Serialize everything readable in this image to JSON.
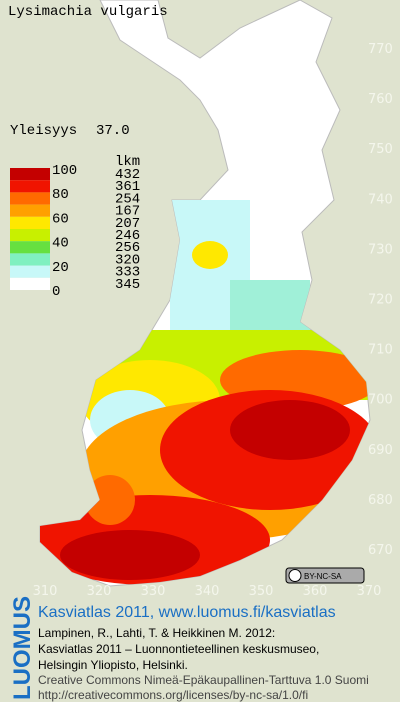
{
  "title": "Lysimachia vulgaris",
  "frequency": {
    "label": "Yleisyys",
    "value": "37.0"
  },
  "legend": {
    "count_header": "lkm",
    "scale_labels": [
      100,
      80,
      60,
      40,
      20,
      0
    ],
    "counts": [
      432,
      361,
      254,
      167,
      207,
      246,
      256,
      320,
      333,
      345
    ],
    "colors": [
      "#c40000",
      "#f01400",
      "#ff6a00",
      "#ffa000",
      "#ffe800",
      "#c8f000",
      "#66e040",
      "#80f0c0",
      "#c8f8f8",
      "#ffffff"
    ]
  },
  "map": {
    "y_labels": [
      770,
      760,
      750,
      740,
      730,
      720,
      710,
      700,
      690,
      680,
      670
    ],
    "x_labels": [
      310,
      320,
      330,
      340,
      350,
      360,
      370
    ]
  },
  "license_badge": "BY-NC-SA",
  "footer": {
    "logo": "LUOMUS",
    "link": "Kasviatlas 2011, www.luomus.fi/kasviatlas",
    "citation": [
      "Lampinen, R., Lahti, T. & Heikkinen M. 2012:",
      "Kasviatlas 2011 – Luonnontieteellinen keskusmuseo,",
      "Helsingin Yliopisto, Helsinki."
    ],
    "license": [
      "Creative Commons Nimeä-Epäkaupallinen-Tarttuva 1.0 Suomi",
      "http://creativecommons.org/licenses/by-nc-sa/1.0/fi"
    ]
  }
}
